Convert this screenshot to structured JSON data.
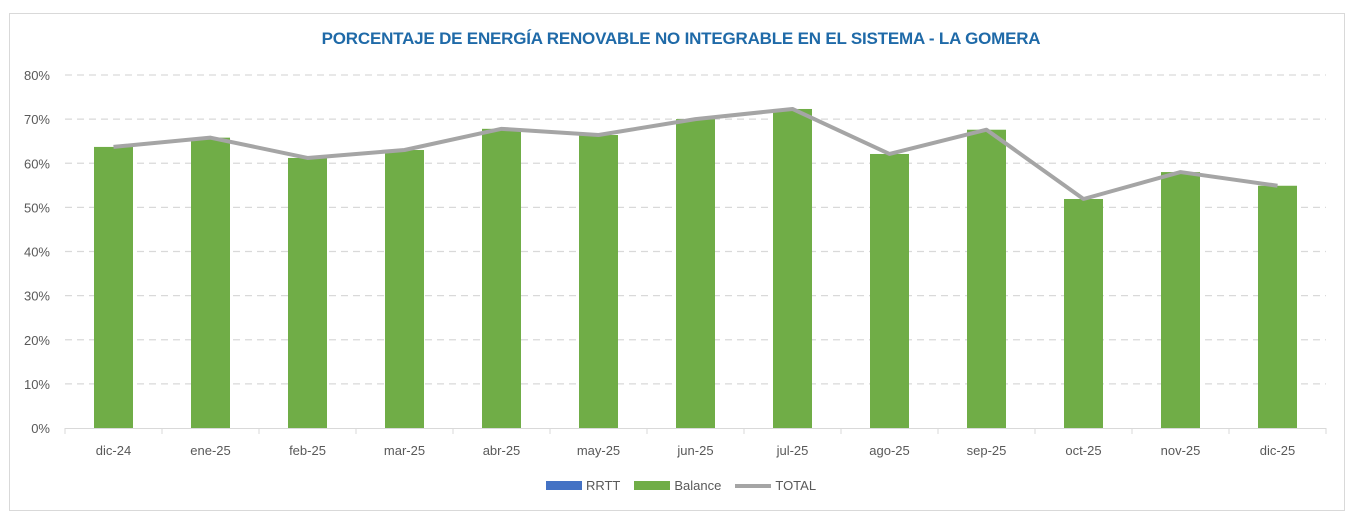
{
  "chart_data": {
    "type": "bar",
    "title": "PORCENTAJE DE ENERGÍA RENOVABLE NO INTEGRABLE EN EL SISTEMA - LA GOMERA",
    "xlabel": "",
    "ylabel": "",
    "ylim": [
      0,
      0.8
    ],
    "yticks": [
      0,
      0.1,
      0.2,
      0.3,
      0.4,
      0.5,
      0.6,
      0.7,
      0.8
    ],
    "ytick_labels": [
      "0%",
      "10%",
      "20%",
      "30%",
      "40%",
      "50%",
      "60%",
      "70%",
      "80%"
    ],
    "grid": true,
    "legend_position": "bottom",
    "categories": [
      "dic-24",
      "ene-25",
      "feb-25",
      "mar-25",
      "abr-25",
      "may-25",
      "jun-25",
      "jul-25",
      "ago-25",
      "sep-25",
      "oct-25",
      "nov-25",
      "dic-25"
    ],
    "series": [
      {
        "name": "RRTT",
        "kind": "bar",
        "color": "#4472c4",
        "values": [
          0,
          0,
          0,
          0,
          0,
          0,
          0,
          0,
          0,
          0,
          0,
          0,
          0
        ]
      },
      {
        "name": "Balance",
        "kind": "bar",
        "color": "#70ad47",
        "values": [
          0.637,
          0.658,
          0.612,
          0.63,
          0.678,
          0.664,
          0.7,
          0.723,
          0.621,
          0.676,
          0.519,
          0.58,
          0.549
        ]
      },
      {
        "name": "TOTAL",
        "kind": "line",
        "color": "#a5a5a5",
        "values": [
          0.637,
          0.658,
          0.612,
          0.63,
          0.678,
          0.664,
          0.7,
          0.723,
          0.621,
          0.676,
          0.519,
          0.58,
          0.549
        ]
      }
    ]
  }
}
